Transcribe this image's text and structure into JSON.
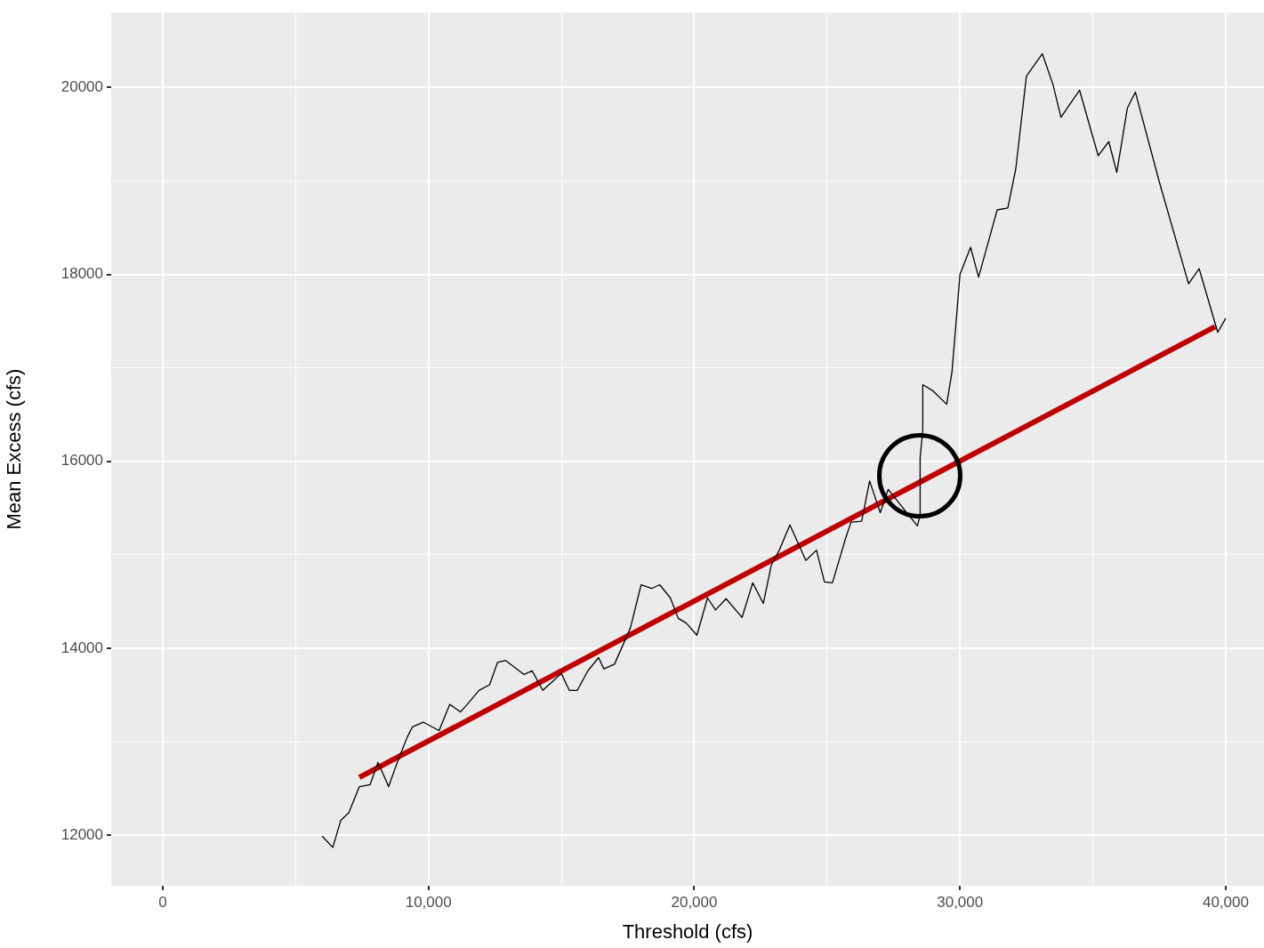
{
  "chart_data": {
    "type": "line",
    "xlabel": "Threshold (cfs)",
    "ylabel": "Mean Excess (cfs)",
    "xlim": [
      -1940,
      41440
    ],
    "ylim": [
      11460,
      20800
    ],
    "xticks": [
      0,
      {
        "value": 5000,
        "label": null
      },
      {
        "value": 10000,
        "label": "10,000"
      },
      {
        "value": 15000,
        "label": null
      },
      {
        "value": 20000,
        "label": "20,000"
      },
      {
        "value": 25000,
        "label": null
      },
      {
        "value": 30000,
        "label": "30,000"
      },
      {
        "value": 35000,
        "label": null
      },
      {
        "value": 40000,
        "label": "40,000"
      }
    ],
    "yticks": [
      12000,
      {
        "value": 13000,
        "label": null
      },
      14000,
      {
        "value": 15000,
        "label": null
      },
      16000,
      {
        "value": 17000,
        "label": null
      },
      18000,
      {
        "value": 19000,
        "label": null
      },
      20000
    ],
    "grid": true,
    "legend": false,
    "series": [
      {
        "type": "line",
        "color": "#000000",
        "x": [
          6000,
          6400,
          6700,
          7000,
          7400,
          7800,
          8100,
          8500,
          8800,
          9200,
          9400,
          9800,
          10400,
          10800,
          11200,
          11400,
          11900,
          12300,
          12600,
          12900,
          13600,
          13900,
          14300,
          15000,
          15300,
          15600,
          16000,
          16400,
          16600,
          17000,
          17600,
          18000,
          18400,
          18700,
          19100,
          19400,
          19700,
          20100,
          20500,
          20800,
          21200,
          21800,
          22200,
          22600,
          22900,
          23200,
          23600,
          24200,
          24600,
          24900,
          25200,
          25700,
          25900,
          26300,
          26600,
          27000,
          27300,
          28000,
          28400,
          28500,
          28500,
          28600,
          28600,
          29000,
          29500,
          29700,
          30000,
          30400,
          30700,
          31400,
          31800,
          32100,
          32500,
          33100,
          33500,
          33800,
          34500,
          35200,
          35600,
          35900,
          36300,
          36600,
          37500,
          38600,
          39000,
          39700,
          40000
        ],
        "values": [
          11990,
          11870,
          12160,
          12240,
          12520,
          12540,
          12780,
          12520,
          12760,
          13050,
          13160,
          13210,
          13120,
          13400,
          13320,
          13380,
          13550,
          13610,
          13850,
          13870,
          13720,
          13760,
          13550,
          13730,
          13550,
          13550,
          13760,
          13900,
          13780,
          13830,
          14220,
          14680,
          14640,
          14680,
          14540,
          14320,
          14270,
          14140,
          14540,
          14410,
          14530,
          14330,
          14700,
          14480,
          14890,
          15050,
          15320,
          14940,
          15050,
          14710,
          14700,
          15180,
          15350,
          15360,
          15790,
          15450,
          15700,
          15450,
          15310,
          15430,
          16040,
          16330,
          16820,
          16750,
          16610,
          16960,
          18000,
          18290,
          17970,
          18690,
          18710,
          19130,
          20120,
          20360,
          20030,
          19680,
          19970,
          19270,
          19420,
          19090,
          19780,
          19950,
          18990,
          17900,
          18060,
          17380,
          17530
        ]
      },
      {
        "type": "line",
        "color": "#c00000",
        "x": [
          7400,
          39600
        ],
        "values": [
          12620,
          17440
        ]
      }
    ]
  }
}
